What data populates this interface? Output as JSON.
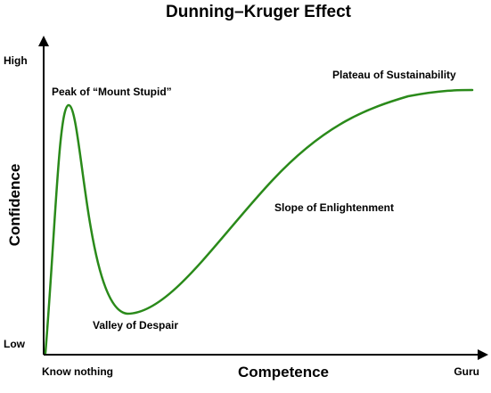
{
  "title": "Dunning–Kruger Effect",
  "x_axis": {
    "label": "Competence",
    "start_label": "Know nothing",
    "end_label": "Guru"
  },
  "y_axis": {
    "label": "Confidence",
    "low_label": "Low",
    "high_label": "High"
  },
  "annotations": {
    "peak": "Peak of “Mount Stupid”",
    "valley": "Valley of Despair",
    "slope": "Slope of Enlightenment",
    "plateau": "Plateau of Sustainability"
  },
  "curve": {
    "color": "#2a8a1a"
  },
  "axes_color": "#000000"
}
